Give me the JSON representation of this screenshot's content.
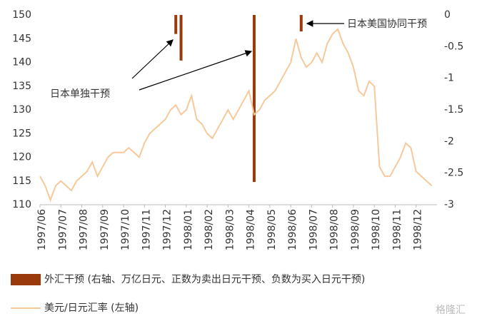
{
  "chart_data": {
    "type": "bar-line",
    "categories": [
      "1997/06",
      null,
      null,
      null,
      "1997/07",
      null,
      null,
      null,
      "1997/08",
      null,
      null,
      null,
      "1997/09",
      null,
      null,
      null,
      "1997/10",
      null,
      null,
      null,
      "1997/11",
      null,
      null,
      null,
      "1997/12",
      null,
      null,
      null,
      "1998/01",
      null,
      null,
      null,
      "1998/02",
      null,
      null,
      null,
      "1998/03",
      null,
      null,
      null,
      "1998/04",
      null,
      null,
      null,
      "1998/05",
      null,
      null,
      null,
      "1998/06",
      null,
      null,
      null,
      "1998/07",
      null,
      null,
      null,
      "1998/08",
      null,
      null,
      null,
      "1998/09",
      null,
      null,
      null,
      "1998/10",
      null,
      null,
      null,
      "1998/11",
      null,
      null,
      null,
      "1998/12",
      null,
      null,
      null
    ],
    "series": [
      {
        "name": "外汇干预 (右轴、万亿日元、正数为卖出日元干预、负数为买入日元干预)",
        "type": "bar",
        "axis": "y2",
        "color": "#9a3a0c",
        "values": [
          null,
          null,
          null,
          null,
          null,
          null,
          null,
          null,
          null,
          null,
          null,
          null,
          null,
          null,
          null,
          null,
          null,
          null,
          null,
          null,
          null,
          null,
          null,
          null,
          null,
          null,
          -0.3,
          -0.72,
          null,
          null,
          null,
          null,
          null,
          null,
          null,
          null,
          null,
          null,
          null,
          null,
          null,
          -2.64,
          null,
          null,
          null,
          null,
          null,
          null,
          null,
          null,
          -0.26,
          null,
          null,
          null,
          null,
          null,
          null,
          null,
          null,
          null,
          null,
          null,
          null,
          null,
          null,
          null,
          null,
          null,
          null,
          null,
          null,
          null,
          null,
          null,
          null,
          null
        ]
      },
      {
        "name": "美元/日元汇率 (左轴)",
        "type": "line",
        "axis": "y",
        "color": "#f7c99a",
        "values": [
          116,
          114,
          111,
          114,
          115,
          114,
          113,
          115,
          116,
          117,
          119,
          116,
          118,
          120,
          121,
          121,
          121,
          122,
          121,
          120,
          123,
          125,
          126,
          127,
          128,
          130,
          131,
          129,
          130,
          133,
          128,
          127,
          125,
          124,
          126,
          128,
          130,
          128,
          130,
          132,
          134,
          129,
          130,
          132,
          133,
          134,
          136,
          138,
          140,
          145,
          141,
          139,
          140,
          142,
          140,
          144,
          146,
          147,
          144,
          142,
          139,
          134,
          133,
          136,
          135,
          118,
          116,
          116,
          118,
          120,
          123,
          122,
          117,
          116,
          115,
          114
        ]
      }
    ],
    "ylim": [
      110,
      150
    ],
    "yticks": [
      110,
      115,
      120,
      125,
      130,
      135,
      140,
      145,
      150
    ],
    "y2lim": [
      -3,
      0
    ],
    "y2ticks": [
      -3,
      -2.5,
      -2,
      -1.5,
      -1,
      -0.5,
      0
    ],
    "annotations": [
      {
        "text": "日本美国协同干预"
      },
      {
        "text": "日本单独干预"
      }
    ],
    "watermark": "格隆汇"
  }
}
